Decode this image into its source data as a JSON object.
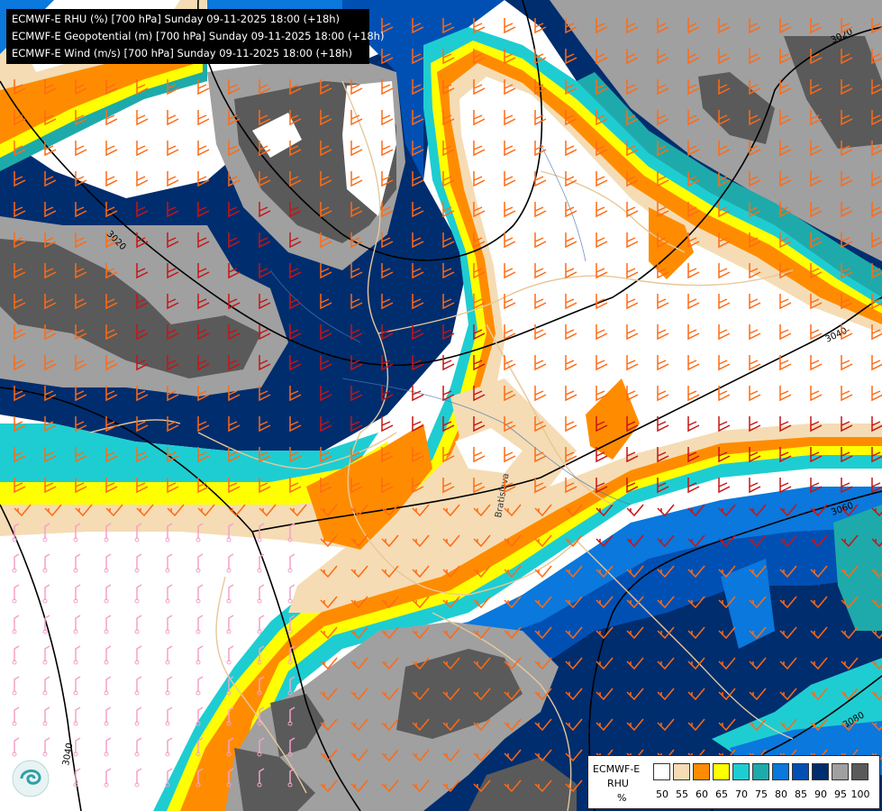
{
  "header": {
    "line1": "ECMWF-E RHU (%) [700 hPa] Sunday 09-11-2025 18:00 (+18h)",
    "line2": "ECMWF-E Geopotential (m) [700 hPa] Sunday 09-11-2025 18:00 (+18h)",
    "line3": "ECMWF-E Wind (m/s) [700 hPa] Sunday 09-11-2025 18:00 (+18h)"
  },
  "legend": {
    "title_line1": "ECMWF-E",
    "title_line2": "RHU",
    "unit": "%",
    "classes": [
      {
        "value": "50",
        "color": "#ffffff"
      },
      {
        "value": "55",
        "color": "#f5dcb4"
      },
      {
        "value": "60",
        "color": "#ff8c00"
      },
      {
        "value": "65",
        "color": "#ffff00"
      },
      {
        "value": "70",
        "color": "#1ecdd2"
      },
      {
        "value": "75",
        "color": "#1eaaaa"
      },
      {
        "value": "80",
        "color": "#0a78dc"
      },
      {
        "value": "85",
        "color": "#0050b4"
      },
      {
        "value": "90",
        "color": "#002d6e"
      },
      {
        "value": "95",
        "color": "#a0a0a0"
      },
      {
        "value": "100",
        "color": "#5a5a5a"
      }
    ]
  },
  "contours": {
    "labels": [
      "3020",
      "3020",
      "3040",
      "3060",
      "3080",
      "3040"
    ]
  },
  "map_labels": {
    "rotated_city": "Bratislava"
  },
  "colors": {
    "contour_line": "#000000",
    "borders": "#e6c89a",
    "rivers": "#4a78b4",
    "barb_strong": "#c81414",
    "barb_medium": "#ff6a14",
    "barb_light": "#f5a0c8"
  }
}
